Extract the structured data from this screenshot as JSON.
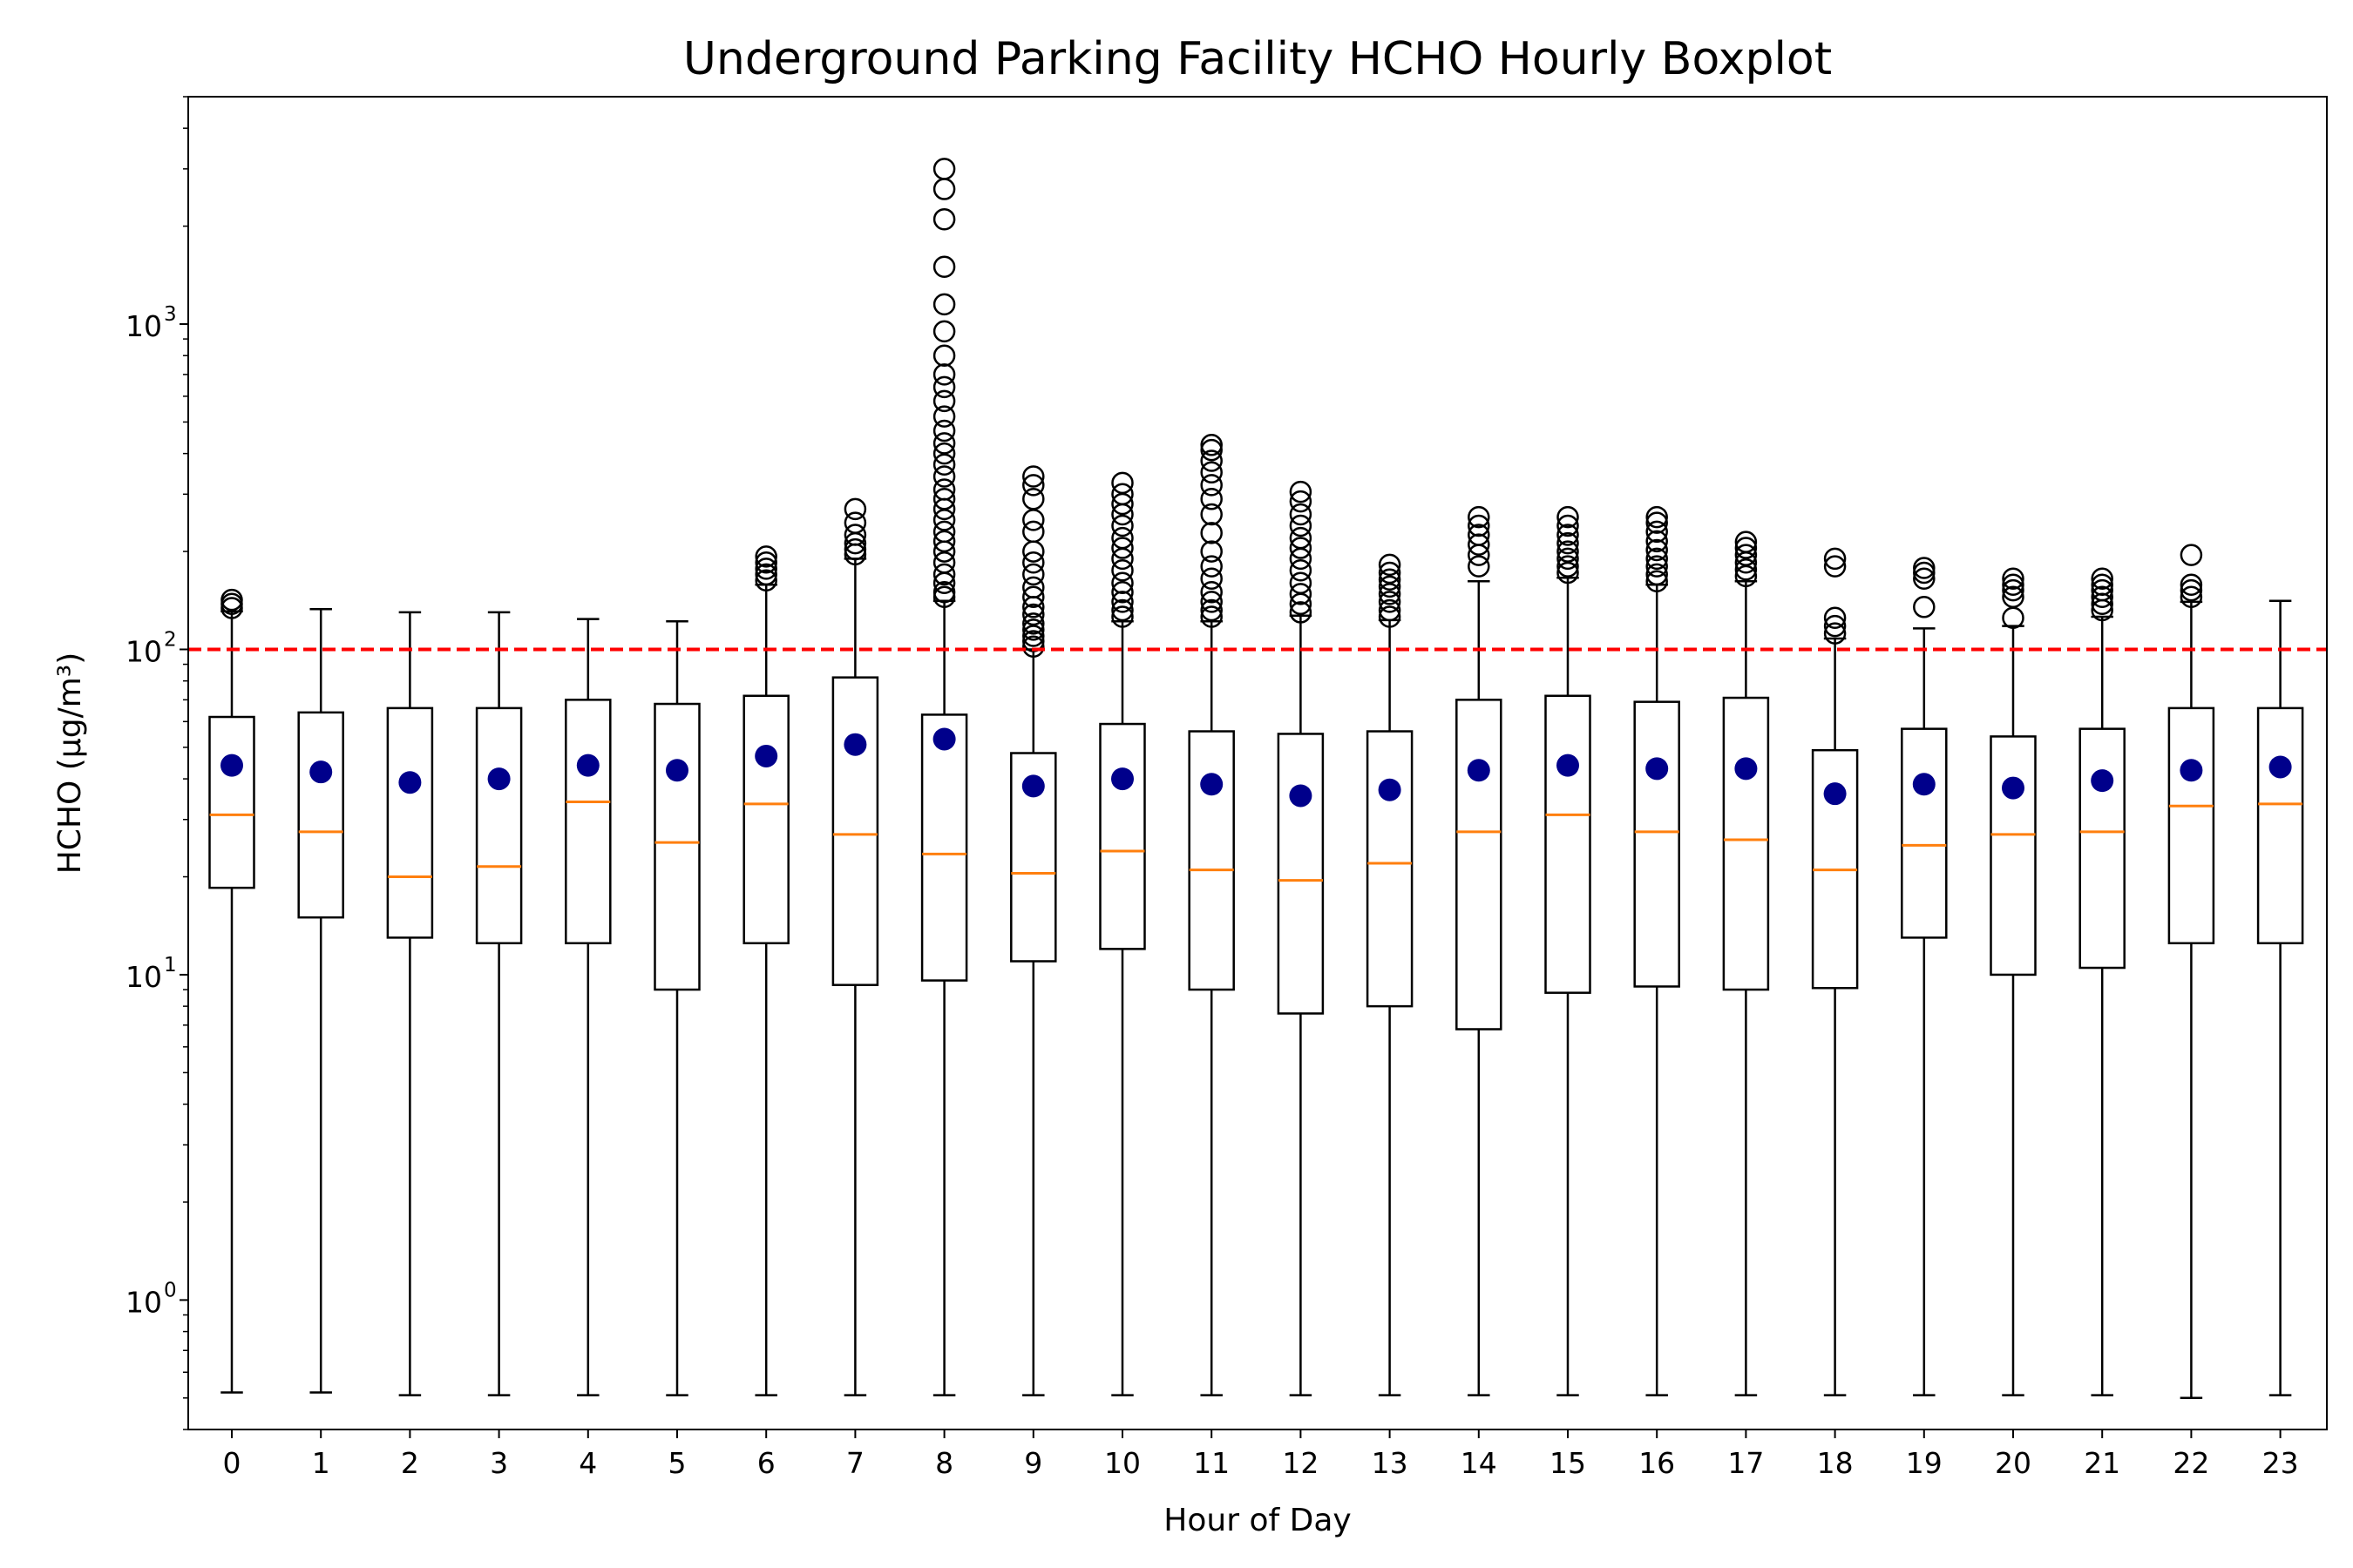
{
  "chart_data": {
    "type": "boxplot",
    "title": "Underground Parking Facility HCHO Hourly Boxplot",
    "xlabel": "Hour of Day",
    "ylabel": "HCHO (µg/m³)",
    "y_scale": "log",
    "ylim": [
      0.4,
      5000
    ],
    "y_ticks": [
      {
        "value": 1,
        "base": "10",
        "exp": "0"
      },
      {
        "value": 10,
        "base": "10",
        "exp": "1"
      },
      {
        "value": 100,
        "base": "10",
        "exp": "2"
      },
      {
        "value": 1000,
        "base": "10",
        "exp": "3"
      }
    ],
    "reference_line": {
      "value": 100,
      "color": "#ff0000",
      "style": "dashed"
    },
    "colors": {
      "box": "#000000",
      "median": "#ff7f0e",
      "mean": "#00008b",
      "outlier": "#000000"
    },
    "categories": [
      "0",
      "1",
      "2",
      "3",
      "4",
      "5",
      "6",
      "7",
      "8",
      "9",
      "10",
      "11",
      "12",
      "13",
      "14",
      "15",
      "16",
      "17",
      "18",
      "19",
      "20",
      "21",
      "22",
      "23"
    ],
    "boxes": [
      {
        "hour": "0",
        "whislo": 0.52,
        "q1": 18.5,
        "med": 31,
        "q3": 62,
        "whishi": 131,
        "mean": 44,
        "fliers": [
          134,
          138,
          142
        ]
      },
      {
        "hour": "1",
        "whislo": 0.52,
        "q1": 15,
        "med": 27.5,
        "q3": 64,
        "whishi": 133,
        "mean": 42,
        "fliers": []
      },
      {
        "hour": "2",
        "whislo": 0.51,
        "q1": 13,
        "med": 20,
        "q3": 66,
        "whishi": 130,
        "mean": 39,
        "fliers": []
      },
      {
        "hour": "3",
        "whislo": 0.51,
        "q1": 12.5,
        "med": 21.5,
        "q3": 66,
        "whishi": 130,
        "mean": 40,
        "fliers": []
      },
      {
        "hour": "4",
        "whislo": 0.51,
        "q1": 12.5,
        "med": 34,
        "q3": 70,
        "whishi": 124,
        "mean": 44,
        "fliers": []
      },
      {
        "hour": "5",
        "whislo": 0.51,
        "q1": 9,
        "med": 25.5,
        "q3": 68,
        "whishi": 122,
        "mean": 42.5,
        "fliers": []
      },
      {
        "hour": "6",
        "whislo": 0.51,
        "q1": 12.5,
        "med": 33.5,
        "q3": 72,
        "whishi": 158,
        "mean": 47,
        "fliers": [
          163,
          170,
          177,
          185,
          193
        ]
      },
      {
        "hour": "7",
        "whislo": 0.51,
        "q1": 9.3,
        "med": 27,
        "q3": 82,
        "whishi": 190,
        "mean": 51,
        "fliers": [
          196,
          203,
          212,
          225,
          245,
          270
        ]
      },
      {
        "hour": "8",
        "whislo": 0.51,
        "q1": 9.6,
        "med": 23.5,
        "q3": 63,
        "whishi": 141,
        "mean": 53,
        "fliers": [
          145,
          150,
          160,
          170,
          185,
          200,
          215,
          230,
          250,
          270,
          290,
          310,
          340,
          370,
          400,
          430,
          470,
          520,
          580,
          640,
          700,
          800,
          950,
          1150,
          1500,
          2100,
          2600,
          3000
        ]
      },
      {
        "hour": "9",
        "whislo": 0.51,
        "q1": 11,
        "med": 20.5,
        "q3": 48,
        "whishi": 100,
        "mean": 38,
        "fliers": [
          102,
          106,
          110,
          115,
          120,
          128,
          135,
          145,
          155,
          170,
          185,
          200,
          230,
          250,
          290,
          320,
          340
        ]
      },
      {
        "hour": "10",
        "whislo": 0.51,
        "q1": 12,
        "med": 24,
        "q3": 59,
        "whishi": 122,
        "mean": 40,
        "fliers": [
          126,
          132,
          140,
          150,
          160,
          175,
          190,
          205,
          220,
          240,
          260,
          280,
          300,
          325
        ]
      },
      {
        "hour": "11",
        "whislo": 0.51,
        "q1": 9,
        "med": 21,
        "q3": 56,
        "whishi": 122,
        "mean": 38.5,
        "fliers": [
          126,
          132,
          140,
          150,
          165,
          180,
          200,
          228,
          260,
          290,
          320,
          350,
          380,
          410,
          425
        ]
      },
      {
        "hour": "12",
        "whislo": 0.51,
        "q1": 7.6,
        "med": 19.5,
        "q3": 55,
        "whishi": 127,
        "mean": 35.5,
        "fliers": [
          130,
          138,
          148,
          160,
          175,
          190,
          205,
          220,
          240,
          260,
          285,
          305
        ]
      },
      {
        "hour": "13",
        "whislo": 0.51,
        "q1": 8,
        "med": 22,
        "q3": 56,
        "whishi": 123,
        "mean": 37,
        "fliers": [
          126,
          132,
          140,
          148,
          156,
          164,
          172,
          182
        ]
      },
      {
        "hour": "14",
        "whislo": 0.51,
        "q1": 6.8,
        "med": 27.5,
        "q3": 70,
        "whishi": 162,
        "mean": 42.5,
        "fliers": [
          180,
          195,
          210,
          225,
          240,
          255
        ]
      },
      {
        "hour": "15",
        "whislo": 0.51,
        "q1": 8.8,
        "med": 31,
        "q3": 72,
        "whishi": 166,
        "mean": 44,
        "fliers": [
          172,
          180,
          190,
          200,
          212,
          225,
          240,
          255
        ]
      },
      {
        "hour": "16",
        "whislo": 0.51,
        "q1": 9.2,
        "med": 27.5,
        "q3": 69,
        "whishi": 158,
        "mean": 43,
        "fliers": [
          162,
          170,
          180,
          190,
          202,
          215,
          230,
          245,
          255
        ]
      },
      {
        "hour": "17",
        "whislo": 0.51,
        "q1": 9,
        "med": 26,
        "q3": 71,
        "whishi": 162,
        "mean": 43,
        "fliers": [
          168,
          176,
          185,
          195,
          205,
          214
        ]
      },
      {
        "hour": "18",
        "whislo": 0.51,
        "q1": 9.1,
        "med": 21,
        "q3": 49,
        "whishi": 108,
        "mean": 36,
        "fliers": [
          112,
          118,
          125,
          180,
          190
        ]
      },
      {
        "hour": "19",
        "whislo": 0.51,
        "q1": 13,
        "med": 25,
        "q3": 57,
        "whishi": 116,
        "mean": 38.5,
        "fliers": [
          135,
          165,
          172,
          178
        ]
      },
      {
        "hour": "20",
        "whislo": 0.51,
        "q1": 10,
        "med": 27,
        "q3": 54,
        "whishi": 118,
        "mean": 37.5,
        "fliers": [
          125,
          145,
          152,
          158,
          165
        ]
      },
      {
        "hour": "21",
        "whislo": 0.51,
        "q1": 10.5,
        "med": 27.5,
        "q3": 57,
        "whishi": 126,
        "mean": 39.5,
        "fliers": [
          132,
          138,
          145,
          152,
          158,
          165
        ]
      },
      {
        "hour": "22",
        "whislo": 0.5,
        "q1": 12.5,
        "med": 33,
        "q3": 66,
        "whishi": 140,
        "mean": 42.5,
        "fliers": [
          145,
          152,
          158,
          195
        ]
      },
      {
        "hour": "23",
        "whislo": 0.51,
        "q1": 12.5,
        "med": 33.5,
        "q3": 66,
        "whishi": 141,
        "mean": 43.5,
        "fliers": []
      }
    ]
  }
}
